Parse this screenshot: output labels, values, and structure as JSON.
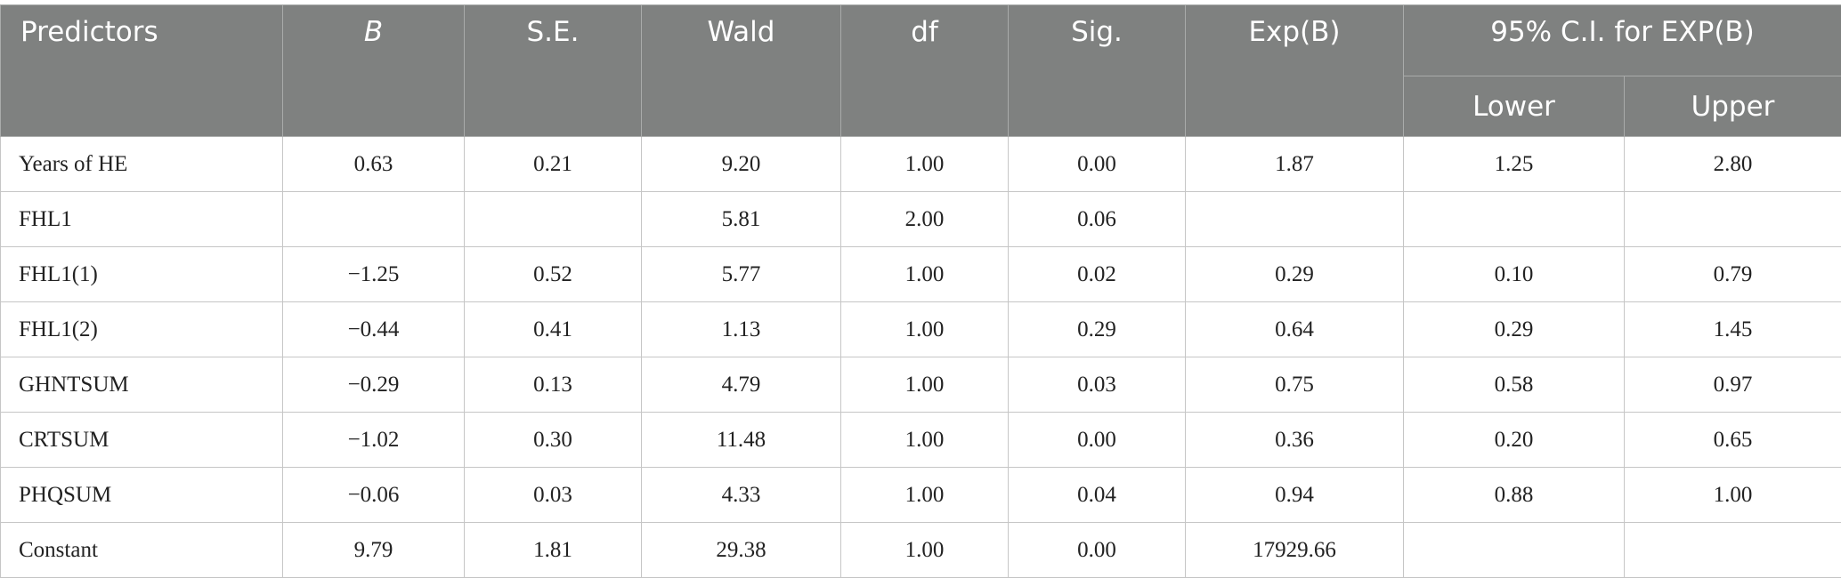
{
  "table": {
    "header": {
      "columns": [
        "Predictors",
        "B",
        "S.E.",
        "Wald",
        "df",
        "Sig.",
        "Exp(B)",
        "95% C.I. for EXP(B)"
      ],
      "subcolumns": [
        "Lower",
        "Upper"
      ]
    },
    "rows": [
      [
        "Years of HE",
        "0.63",
        "0.21",
        "9.20",
        "1.00",
        "0.00",
        "1.87",
        "1.25",
        "2.80"
      ],
      [
        "FHL1",
        null,
        null,
        "5.81",
        "2.00",
        "0.06",
        null,
        null,
        null
      ],
      [
        "FHL1(1)",
        "−1.25",
        "0.52",
        "5.77",
        "1.00",
        "0.02",
        "0.29",
        "0.10",
        "0.79"
      ],
      [
        "FHL1(2)",
        "−0.44",
        "0.41",
        "1.13",
        "1.00",
        "0.29",
        "0.64",
        "0.29",
        "1.45"
      ],
      [
        "GHNTSUM",
        "−0.29",
        "0.13",
        "4.79",
        "1.00",
        "0.03",
        "0.75",
        "0.58",
        "0.97"
      ],
      [
        "CRTSUM",
        "−1.02",
        "0.30",
        "11.48",
        "1.00",
        "0.00",
        "0.36",
        "0.20",
        "0.65"
      ],
      [
        "PHQSUM",
        "−0.06",
        "0.03",
        "4.33",
        "1.00",
        "0.04",
        "0.94",
        "0.88",
        "1.00"
      ],
      [
        "Constant",
        "9.79",
        "1.81",
        "29.38",
        "1.00",
        "0.00",
        "17929.66",
        null,
        null
      ]
    ]
  }
}
